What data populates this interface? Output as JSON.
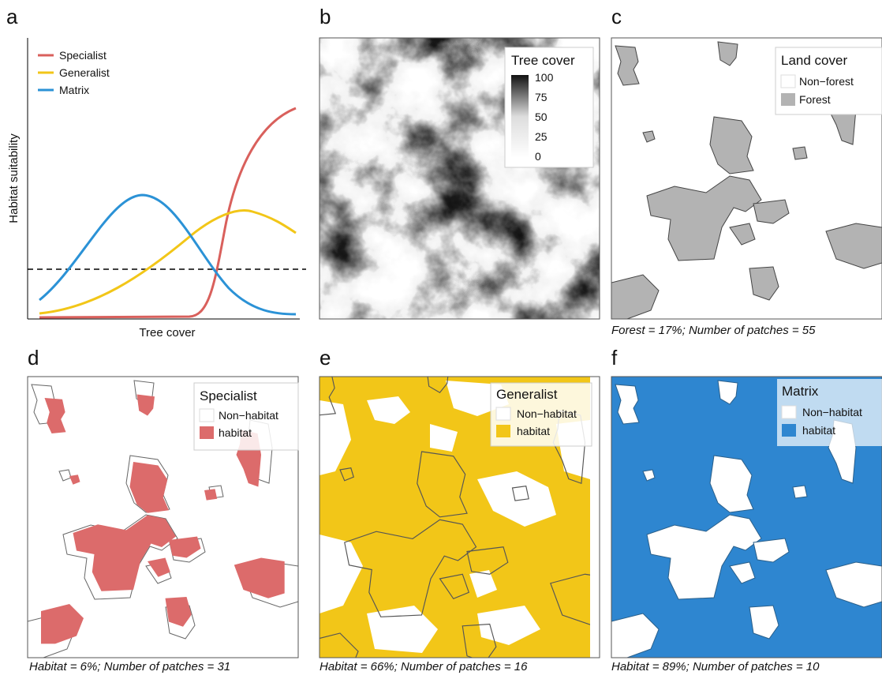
{
  "panels": [
    {
      "letter": "a",
      "legend": [
        "Specialist",
        "Generalist",
        "Matrix"
      ],
      "x_label": "Tree cover",
      "y_label": "Habitat suitability"
    },
    {
      "letter": "b",
      "legend_title": "Tree cover",
      "legend_ticks": [
        100,
        75,
        50,
        25,
        0
      ]
    },
    {
      "letter": "c",
      "legend_title": "Land cover",
      "legend_items": [
        "Non−forest",
        "Forest"
      ],
      "caption": "Forest = 17%; Number of patches = 55"
    },
    {
      "letter": "d",
      "legend_title": "Specialist",
      "legend_items": [
        "Non−habitat",
        "habitat"
      ],
      "caption": "Habitat = 6%; Number of patches = 31"
    },
    {
      "letter": "e",
      "legend_title": "Generalist",
      "legend_items": [
        "Non−habitat",
        "habitat"
      ],
      "caption": "Habitat = 66%; Number of patches = 16"
    },
    {
      "letter": "f",
      "legend_title": "Matrix",
      "legend_items": [
        "Non−habitat",
        "habitat"
      ],
      "caption": "Habitat = 89%; Number of patches = 10"
    }
  ]
}
